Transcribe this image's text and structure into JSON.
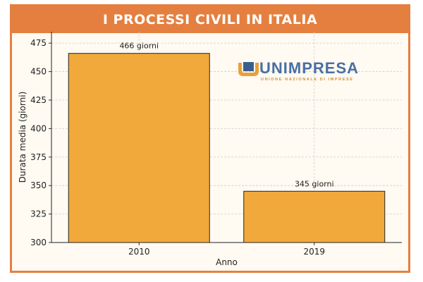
{
  "header": {
    "title": "I PROCESSI CIVILI IN ITALIA"
  },
  "logo": {
    "name": "UNIMPRESA",
    "tagline": "UNIONE NAZIONALE DI IMPRESE"
  },
  "colors": {
    "bar": "#f2a93b",
    "frame": "#e57f3f",
    "plot_bg": "#fffaf2",
    "logo_blue": "#3a5f8f",
    "logo_orange": "#e8a13a"
  },
  "chart_data": {
    "type": "bar",
    "title": "",
    "xlabel": "Anno",
    "ylabel": "Durata media (giorni)",
    "categories": [
      "2010",
      "2019"
    ],
    "values": [
      466,
      345
    ],
    "data_labels": [
      "466 giorni",
      "345 giorni"
    ],
    "ylim": [
      300,
      485
    ],
    "yticks": [
      300,
      325,
      350,
      375,
      400,
      425,
      450,
      475
    ],
    "grid": true
  }
}
